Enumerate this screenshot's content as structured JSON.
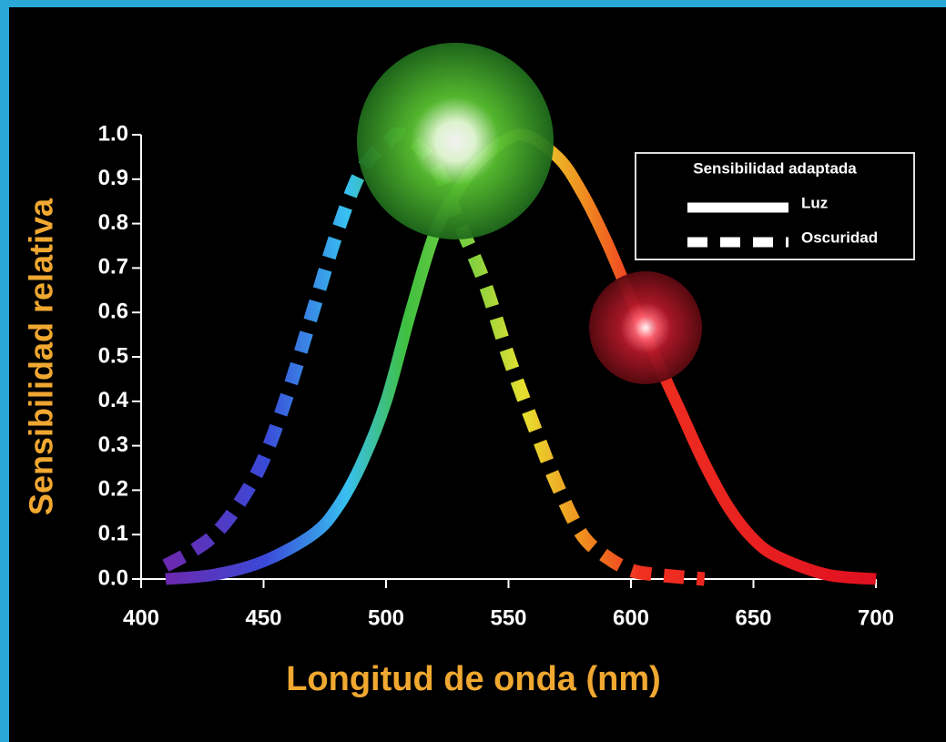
{
  "chart_data": {
    "type": "line",
    "xlabel": "Longitud de onda (nm)",
    "ylabel": "Sensibilidad relativa",
    "legend_title": "Sensibilidad adaptada",
    "legend": "upper right",
    "xlim": [
      400,
      700
    ],
    "xticks": [
      400,
      450,
      500,
      550,
      600,
      650,
      700
    ],
    "ylim": [
      0,
      1
    ],
    "yticks": [
      {
        "value": 0,
        "label": "0.0"
      },
      0.1,
      0.2,
      0.3,
      0.4,
      0.5,
      0.6,
      0.7,
      0.8,
      0.9,
      {
        "value": 1,
        "label": "1.0"
      }
    ],
    "series": [
      {
        "name": "Luz",
        "dash": false,
        "x": [
          410,
          430,
          450,
          470,
          480,
          490,
          500,
          510,
          520,
          530,
          540,
          555,
          570,
          580,
          590,
          600,
          610,
          620,
          630,
          640,
          650,
          660,
          680,
          700
        ],
        "values": [
          0.0,
          0.01,
          0.04,
          0.1,
          0.16,
          0.26,
          0.4,
          0.6,
          0.78,
          0.88,
          0.95,
          1.0,
          0.95,
          0.87,
          0.76,
          0.63,
          0.5,
          0.38,
          0.26,
          0.16,
          0.09,
          0.05,
          0.01,
          0.0
        ]
      },
      {
        "name": "Oscuridad",
        "dash": true,
        "x": [
          410,
          420,
          430,
          440,
          450,
          460,
          470,
          480,
          490,
          500,
          507,
          520,
          530,
          540,
          550,
          560,
          570,
          580,
          590,
          600,
          610,
          630
        ],
        "values": [
          0.03,
          0.06,
          0.1,
          0.17,
          0.27,
          0.42,
          0.6,
          0.78,
          0.92,
          0.98,
          1.0,
          0.93,
          0.8,
          0.67,
          0.5,
          0.35,
          0.21,
          0.1,
          0.05,
          0.02,
          0.01,
          0.0
        ]
      }
    ]
  }
}
